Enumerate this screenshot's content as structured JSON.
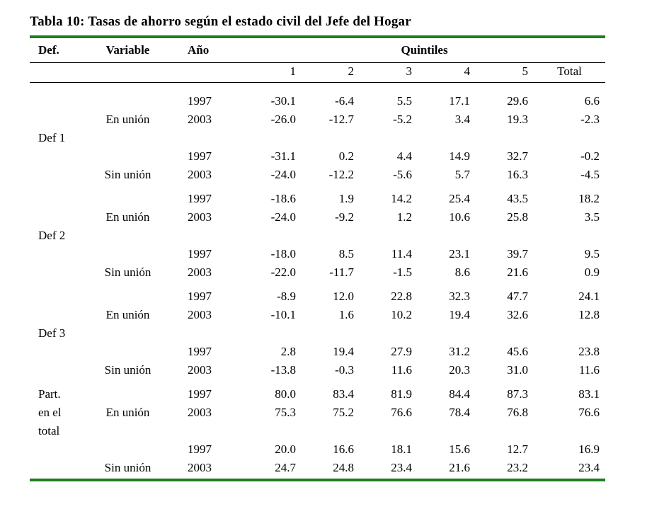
{
  "title": "Tabla 10: Tasas de ahorro según el estado civil del Jefe del Hogar",
  "colors": {
    "rule_green": "#1e7d1e",
    "text": "#000000"
  },
  "table": {
    "headers": {
      "def": "Def.",
      "variable": "Variable",
      "year": "Año",
      "quintiles": "Quintiles"
    },
    "sub_headers": [
      "1",
      "2",
      "3",
      "4",
      "5",
      "Total"
    ],
    "groups": [
      {
        "name": "Def 1",
        "rows": [
          {
            "def": "",
            "variable": "",
            "year": "1997",
            "values": [
              "-30.1",
              "-6.4",
              "5.5",
              "17.1",
              "29.6",
              "6.6"
            ]
          },
          {
            "def": "",
            "variable": "En unión",
            "year": "2003",
            "values": [
              "-26.0",
              "-12.7",
              "-5.2",
              "3.4",
              "19.3",
              "-2.3"
            ]
          },
          {
            "def": "Def 1",
            "variable": "",
            "year": "",
            "values": []
          },
          {
            "def": "",
            "variable": "",
            "year": "1997",
            "values": [
              "-31.1",
              "0.2",
              "4.4",
              "14.9",
              "32.7",
              "-0.2"
            ]
          },
          {
            "def": "",
            "variable": "Sin unión",
            "year": "2003",
            "values": [
              "-24.0",
              "-12.2",
              "-5.6",
              "5.7",
              "16.3",
              "-4.5"
            ]
          }
        ]
      },
      {
        "name": "Def 2",
        "rows": [
          {
            "def": "",
            "variable": "",
            "year": "1997",
            "values": [
              "-18.6",
              "1.9",
              "14.2",
              "25.4",
              "43.5",
              "18.2"
            ]
          },
          {
            "def": "",
            "variable": "En unión",
            "year": "2003",
            "values": [
              "-24.0",
              "-9.2",
              "1.2",
              "10.6",
              "25.8",
              "3.5"
            ]
          },
          {
            "def": "Def 2",
            "variable": "",
            "year": "",
            "values": []
          },
          {
            "def": "",
            "variable": "",
            "year": "1997",
            "values": [
              "-18.0",
              "8.5",
              "11.4",
              "23.1",
              "39.7",
              "9.5"
            ]
          },
          {
            "def": "",
            "variable": "Sin unión",
            "year": "2003",
            "values": [
              "-22.0",
              "-11.7",
              "-1.5",
              "8.6",
              "21.6",
              "0.9"
            ]
          }
        ]
      },
      {
        "name": "Def 3",
        "rows": [
          {
            "def": "",
            "variable": "",
            "year": "1997",
            "values": [
              "-8.9",
              "12.0",
              "22.8",
              "32.3",
              "47.7",
              "24.1"
            ]
          },
          {
            "def": "",
            "variable": "En unión",
            "year": "2003",
            "values": [
              "-10.1",
              "1.6",
              "10.2",
              "19.4",
              "32.6",
              "12.8"
            ]
          },
          {
            "def": "Def 3",
            "variable": "",
            "year": "",
            "values": []
          },
          {
            "def": "",
            "variable": "",
            "year": "1997",
            "values": [
              "2.8",
              "19.4",
              "27.9",
              "31.2",
              "45.6",
              "23.8"
            ]
          },
          {
            "def": "",
            "variable": "Sin unión",
            "year": "2003",
            "values": [
              "-13.8",
              "-0.3",
              "11.6",
              "20.3",
              "31.0",
              "11.6"
            ]
          }
        ]
      },
      {
        "name": "Part. en el total",
        "rows": [
          {
            "def": "Part.",
            "variable": "",
            "year": "1997",
            "values": [
              "80.0",
              "83.4",
              "81.9",
              "84.4",
              "87.3",
              "83.1"
            ]
          },
          {
            "def": "en el",
            "variable": "En unión",
            "year": "2003",
            "values": [
              "75.3",
              "75.2",
              "76.6",
              "78.4",
              "76.8",
              "76.6"
            ]
          },
          {
            "def": "total",
            "variable": "",
            "year": "",
            "values": []
          },
          {
            "def": "",
            "variable": "",
            "year": "1997",
            "values": [
              "20.0",
              "16.6",
              "18.1",
              "15.6",
              "12.7",
              "16.9"
            ]
          },
          {
            "def": "",
            "variable": "Sin unión",
            "year": "2003",
            "values": [
              "24.7",
              "24.8",
              "23.4",
              "21.6",
              "23.2",
              "23.4"
            ]
          }
        ]
      }
    ]
  }
}
